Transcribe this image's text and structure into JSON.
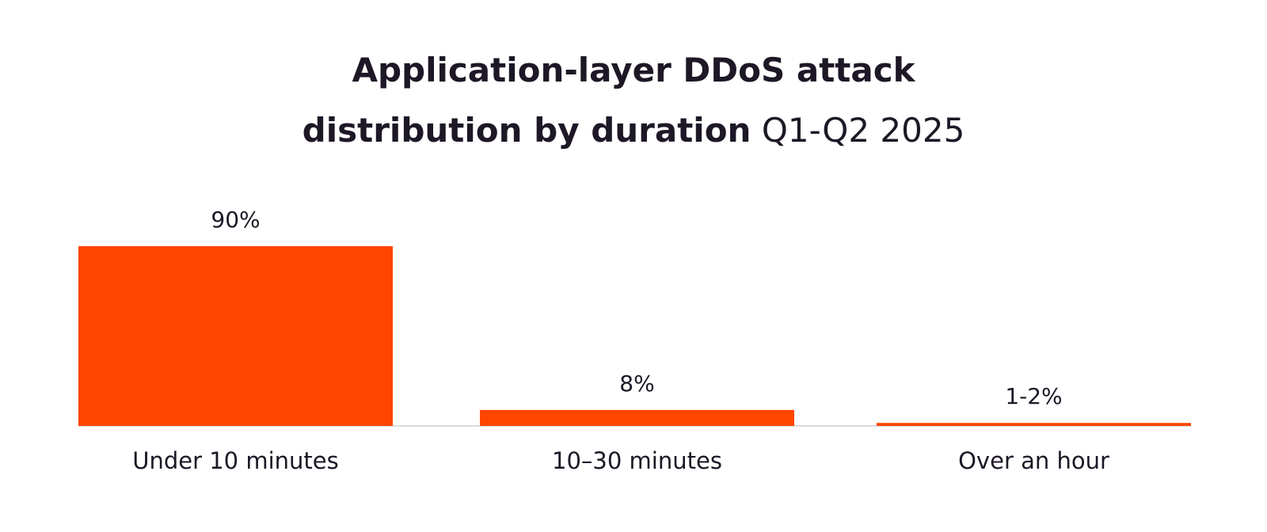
{
  "title": {
    "line1": "Application-layer DDoS attack",
    "line2_bold": "distribution by duration",
    "line2_normal": "Q1-Q2 2025"
  },
  "colors": {
    "bar": "#ff4500",
    "baseline": "#cfcfcf",
    "text": "#1d1726"
  },
  "chart_data": {
    "type": "bar",
    "title": "Application-layer DDoS attack distribution by duration Q1-Q2 2025",
    "categories": [
      "Under 10 minutes",
      "10–30 minutes",
      "Over an hour"
    ],
    "values": [
      90,
      8,
      1.5
    ],
    "data_labels": [
      "90%",
      "8%",
      "1-2%"
    ],
    "xlabel": "",
    "ylabel": "",
    "ylim": [
      0,
      90
    ],
    "grid": false,
    "legend": "none"
  }
}
